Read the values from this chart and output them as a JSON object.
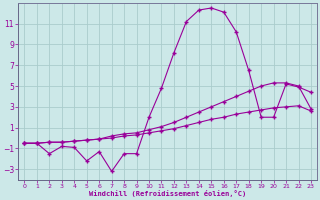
{
  "xlabel": "Windchill (Refroidissement éolien,°C)",
  "bg_color": "#cce8e8",
  "line_color": "#990099",
  "grid_color": "#aacccc",
  "xlim": [
    -0.5,
    23.5
  ],
  "ylim": [
    -4.0,
    13.0
  ],
  "yticks": [
    -3,
    -1,
    1,
    3,
    5,
    7,
    9,
    11
  ],
  "xticks": [
    0,
    1,
    2,
    3,
    4,
    5,
    6,
    7,
    8,
    9,
    10,
    11,
    12,
    13,
    14,
    15,
    16,
    17,
    18,
    19,
    20,
    21,
    22,
    23
  ],
  "line1_x": [
    0,
    1,
    2,
    3,
    4,
    5,
    6,
    7,
    8,
    9,
    10,
    11,
    12,
    13,
    14,
    15,
    16,
    17,
    18,
    19,
    20,
    21,
    22,
    23
  ],
  "line1_y": [
    -0.5,
    -0.5,
    -1.5,
    -0.8,
    -0.9,
    -2.2,
    -1.3,
    -3.2,
    -1.5,
    -1.5,
    2.0,
    4.8,
    8.2,
    11.2,
    12.3,
    12.5,
    12.1,
    10.2,
    6.5,
    2.0,
    2.0,
    5.2,
    4.9,
    4.4
  ],
  "line2_x": [
    0,
    1,
    2,
    3,
    4,
    5,
    6,
    7,
    8,
    9,
    10,
    11,
    12,
    13,
    14,
    15,
    16,
    17,
    18,
    19,
    20,
    21,
    22,
    23
  ],
  "line2_y": [
    -0.5,
    -0.5,
    -0.4,
    -0.4,
    -0.3,
    -0.2,
    -0.1,
    0.2,
    0.4,
    0.5,
    0.8,
    1.1,
    1.5,
    2.0,
    2.5,
    3.0,
    3.5,
    4.0,
    4.5,
    5.0,
    5.3,
    5.3,
    5.0,
    2.8
  ],
  "line3_x": [
    0,
    1,
    2,
    3,
    4,
    5,
    6,
    7,
    8,
    9,
    10,
    11,
    12,
    13,
    14,
    15,
    16,
    17,
    18,
    19,
    20,
    21,
    22,
    23
  ],
  "line3_y": [
    -0.5,
    -0.5,
    -0.4,
    -0.4,
    -0.3,
    -0.2,
    -0.1,
    0.0,
    0.2,
    0.3,
    0.5,
    0.7,
    0.9,
    1.2,
    1.5,
    1.8,
    2.0,
    2.3,
    2.5,
    2.7,
    2.9,
    3.0,
    3.1,
    2.6
  ]
}
